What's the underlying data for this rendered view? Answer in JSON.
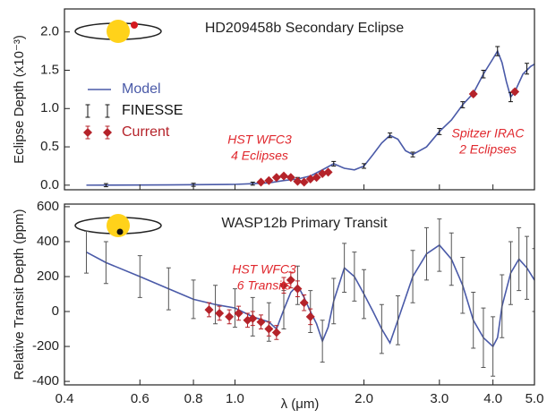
{
  "chart_data": [
    {
      "type": "line",
      "title": "HD209458b Secondary Eclipse",
      "ylabel": "Eclipse Depth (x10⁻³)",
      "xlim": [
        0.4,
        5.0
      ],
      "xscale": "log",
      "ylim": [
        -0.06,
        2.3
      ],
      "yticks": [
        {
          "value": 0,
          "label": "0.0"
        },
        0.5,
        {
          "value": 1,
          "label": "1.0"
        },
        1.5,
        {
          "value": 2,
          "label": "2.0"
        }
      ],
      "legend": "upper left",
      "annotations": [
        [
          "HST WFC3",
          "4 Eclipses"
        ],
        [
          "Spitzer IRAC",
          "2 Eclipses"
        ]
      ],
      "series": [
        {
          "name": "Model",
          "color": "#4a5aa8",
          "x": [
            0.45,
            0.7,
            1.0,
            1.1,
            1.2,
            1.3,
            1.4,
            1.5,
            1.6,
            1.7,
            1.8,
            1.9,
            2.0,
            2.1,
            2.2,
            2.3,
            2.4,
            2.5,
            2.6,
            2.8,
            3.0,
            3.2,
            3.4,
            3.6,
            3.8,
            4.0,
            4.1,
            4.2,
            4.3,
            4.4,
            4.5,
            4.7,
            4.9,
            5.0
          ],
          "values": [
            0.0,
            0.003,
            0.01,
            0.02,
            0.03,
            0.06,
            0.08,
            0.12,
            0.2,
            0.28,
            0.22,
            0.2,
            0.25,
            0.4,
            0.55,
            0.65,
            0.6,
            0.45,
            0.4,
            0.5,
            0.7,
            0.85,
            1.05,
            1.2,
            1.45,
            1.65,
            1.75,
            1.6,
            1.35,
            1.15,
            1.22,
            1.45,
            1.55,
            1.58
          ]
        },
        {
          "name": "FINESSE",
          "color": "#111111",
          "x": [
            0.5,
            0.8,
            1.1,
            1.4,
            1.7,
            2.0,
            2.3,
            2.6,
            3.0,
            3.4,
            3.8,
            4.1,
            4.4,
            4.8
          ],
          "values": [
            0.0,
            0.005,
            0.02,
            0.08,
            0.28,
            0.25,
            0.65,
            0.4,
            0.7,
            1.05,
            1.45,
            1.75,
            1.15,
            1.52
          ],
          "errors": [
            0.02,
            0.02,
            0.02,
            0.02,
            0.03,
            0.03,
            0.03,
            0.03,
            0.04,
            0.04,
            0.05,
            0.06,
            0.06,
            0.07
          ]
        },
        {
          "name": "Current",
          "color": "#b5232a",
          "x": [
            1.15,
            1.2,
            1.25,
            1.3,
            1.35,
            1.4,
            1.45,
            1.5,
            1.55,
            1.6,
            1.65,
            3.6,
            4.5
          ],
          "values": [
            0.04,
            0.06,
            0.1,
            0.12,
            0.1,
            0.05,
            0.04,
            0.08,
            0.1,
            0.15,
            0.17,
            1.19,
            1.22
          ],
          "errors": [
            0.02,
            0.02,
            0.02,
            0.02,
            0.02,
            0.02,
            0.02,
            0.02,
            0.02,
            0.02,
            0.02,
            0.03,
            0.03
          ]
        }
      ]
    },
    {
      "type": "line",
      "title": "WASP12b Primary Transit",
      "ylabel": "Relative Transit Depth (ppm)",
      "xlabel": "λ (μm)",
      "xlim": [
        0.4,
        5.0
      ],
      "xscale": "log",
      "ylim": [
        -420,
        615
      ],
      "xticks": [
        0.4,
        0.6,
        0.8,
        {
          "value": 1,
          "label": "1.0"
        },
        {
          "value": 2,
          "label": "2.0"
        },
        {
          "value": 3,
          "label": "3.0"
        },
        {
          "value": 4,
          "label": "4.0"
        },
        {
          "value": 5,
          "label": "5.0"
        }
      ],
      "yticks": [
        -400,
        -200,
        0,
        200,
        400,
        600
      ],
      "annotations": [
        [
          "HST WFC3",
          "6 Transits"
        ]
      ],
      "series": [
        {
          "color": "#4a5aa8",
          "x": [
            0.45,
            0.5,
            0.6,
            0.7,
            0.8,
            0.9,
            1.0,
            1.1,
            1.2,
            1.25,
            1.3,
            1.35,
            1.4,
            1.45,
            1.5,
            1.55,
            1.6,
            1.65,
            1.7,
            1.8,
            1.9,
            2.0,
            2.1,
            2.2,
            2.3,
            2.4,
            2.6,
            2.8,
            3.0,
            3.2,
            3.4,
            3.6,
            3.8,
            4.0,
            4.1,
            4.2,
            4.4,
            4.6,
            4.8,
            5.0
          ],
          "values": [
            340,
            280,
            200,
            130,
            70,
            40,
            20,
            -30,
            -60,
            -100,
            10,
            110,
            150,
            80,
            0,
            -70,
            -170,
            -90,
            60,
            250,
            200,
            100,
            0,
            -100,
            -180,
            -50,
            200,
            330,
            380,
            300,
            150,
            -50,
            -150,
            -200,
            -150,
            30,
            220,
            300,
            250,
            180
          ]
        },
        {
          "color": "#555555",
          "x": [
            0.45,
            0.5,
            0.6,
            0.7,
            0.8,
            0.9,
            1.0,
            1.1,
            1.2,
            1.3,
            1.4,
            1.5,
            1.6,
            1.7,
            1.8,
            1.9,
            2.0,
            2.2,
            2.4,
            2.6,
            2.8,
            3.0,
            3.2,
            3.4,
            3.6,
            3.8,
            4.0,
            4.2,
            4.4,
            4.6,
            4.8,
            5.0
          ],
          "values": [
            340,
            280,
            200,
            130,
            70,
            40,
            20,
            -30,
            -60,
            10,
            150,
            0,
            -170,
            60,
            250,
            200,
            100,
            -100,
            -50,
            200,
            330,
            380,
            300,
            150,
            -50,
            -150,
            -200,
            30,
            220,
            300,
            250,
            180
          ],
          "errors": [
            120,
            120,
            120,
            120,
            110,
            110,
            110,
            110,
            110,
            110,
            110,
            120,
            120,
            130,
            140,
            140,
            140,
            140,
            140,
            150,
            150,
            150,
            150,
            160,
            160,
            170,
            170,
            180,
            180,
            180,
            180,
            180
          ]
        },
        {
          "color": "#b5232a",
          "x": [
            0.87,
            0.92,
            0.97,
            1.02,
            1.07,
            1.1,
            1.15,
            1.2,
            1.25,
            1.3,
            1.35,
            1.4,
            1.45,
            1.5
          ],
          "values": [
            10,
            -10,
            -30,
            -10,
            -50,
            -40,
            -60,
            -100,
            -120,
            150,
            180,
            130,
            50,
            -30
          ],
          "errors": [
            40,
            40,
            40,
            40,
            40,
            40,
            40,
            40,
            40,
            45,
            45,
            45,
            45,
            45
          ]
        }
      ]
    }
  ]
}
